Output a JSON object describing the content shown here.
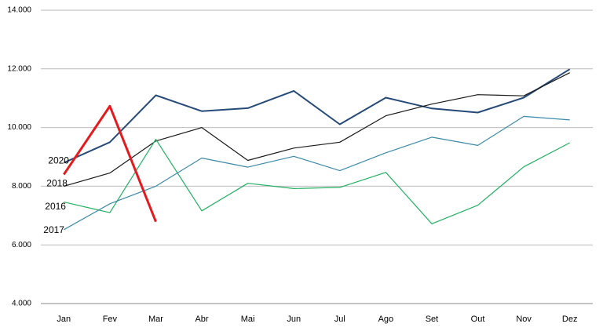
{
  "chart_data": {
    "type": "line",
    "categories": [
      "Jan",
      "Fev",
      "Mar",
      "Abr",
      "Mai",
      "Jun",
      "Jul",
      "Ago",
      "Set",
      "Out",
      "Nov",
      "Dez"
    ],
    "series": [
      {
        "name": "2020",
        "color": "#264a78",
        "width": 2,
        "values": [
          8800,
          9500,
          11100,
          10560,
          10660,
          11250,
          10110,
          11020,
          10650,
          10510,
          11020,
          11990
        ]
      },
      {
        "name": "2018",
        "color": "#1a1a1a",
        "width": 1.2,
        "values": [
          8000,
          8450,
          9540,
          10000,
          8880,
          9300,
          9500,
          10400,
          10800,
          11120,
          11080,
          11870
        ]
      },
      {
        "name": "2016",
        "color": "#21b060",
        "width": 1.2,
        "values": [
          7460,
          7100,
          9600,
          7160,
          8100,
          7920,
          7960,
          8470,
          6720,
          7350,
          8660,
          9480
        ]
      },
      {
        "name": "2017",
        "color": "#3c8aa8",
        "width": 1.2,
        "values": [
          6520,
          7400,
          8000,
          8960,
          8650,
          9020,
          8530,
          9140,
          9670,
          9390,
          10380,
          10260
        ]
      },
      {
        "name": null,
        "color": "#e8191c",
        "width": 3,
        "values": [
          8400,
          10730,
          6790,
          null,
          null,
          null,
          null,
          null,
          null,
          null,
          null,
          null
        ]
      }
    ],
    "ylim": [
      4000,
      14000
    ],
    "yticks": [
      {
        "value": 4000,
        "label": "4.000"
      },
      {
        "value": 6000,
        "label": "6.000"
      },
      {
        "value": 8000,
        "label": "8.000"
      },
      {
        "value": 10000,
        "label": "10.000"
      },
      {
        "value": 12000,
        "label": "12.000"
      },
      {
        "value": 14000,
        "label": "14.000"
      }
    ],
    "grid": true
  }
}
